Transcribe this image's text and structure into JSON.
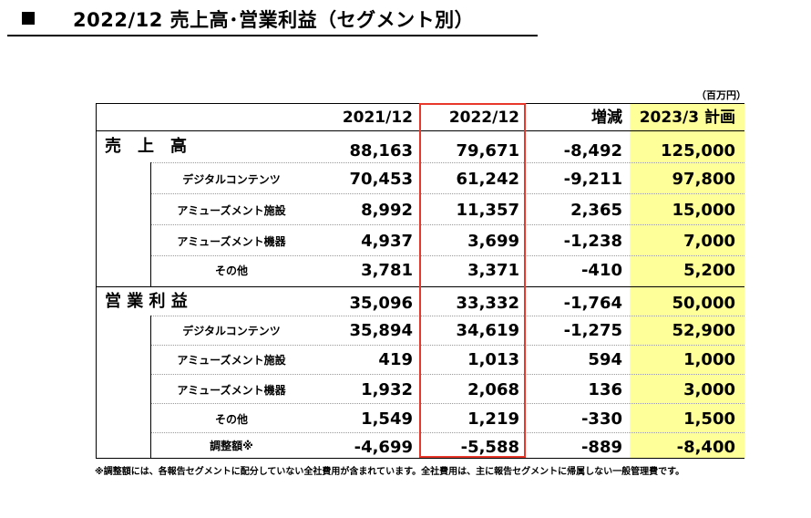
{
  "title": {
    "marker": "■",
    "text": "2022/12 売上高･営業利益（セグメント別）"
  },
  "unit": "（百万円）",
  "columns": [
    "2021/12",
    "2022/12",
    "増減",
    "2023/3 計画"
  ],
  "sections": [
    {
      "label": "売　上　高",
      "values": [
        "88,163",
        "79,671",
        "-8,492",
        "125,000"
      ],
      "rows": [
        {
          "label": "デジタルコンテンツ",
          "values": [
            "70,453",
            "61,242",
            "-9,211",
            "97,800"
          ]
        },
        {
          "label": "アミューズメント施設",
          "values": [
            "8,992",
            "11,357",
            "2,365",
            "15,000"
          ]
        },
        {
          "label": "アミューズメント機器",
          "values": [
            "4,937",
            "3,699",
            "-1,238",
            "7,000"
          ]
        },
        {
          "label": "その他",
          "values": [
            "3,781",
            "3,371",
            "-410",
            "5,200"
          ]
        }
      ]
    },
    {
      "label": "営 業 利 益",
      "values": [
        "35,096",
        "33,332",
        "-1,764",
        "50,000"
      ],
      "rows": [
        {
          "label": "デジタルコンテンツ",
          "values": [
            "35,894",
            "34,619",
            "-1,275",
            "52,900"
          ]
        },
        {
          "label": "アミューズメント施設",
          "values": [
            "419",
            "1,013",
            "594",
            "1,000"
          ]
        },
        {
          "label": "アミューズメント機器",
          "values": [
            "1,932",
            "2,068",
            "136",
            "3,000"
          ]
        },
        {
          "label": "その他",
          "values": [
            "1,549",
            "1,219",
            "-330",
            "1,500"
          ]
        },
        {
          "label": "調整額※",
          "values": [
            "-4,699",
            "-5,588",
            "-889",
            "-8,400"
          ]
        }
      ]
    }
  ],
  "footnote": "※調整額には、各報告セグメントに配分していない全社費用が含まれています。全社費用は、主に報告セグメントに帰属しない一般管理費です。",
  "colors": {
    "plan_highlight": "#ffff99",
    "current_column_border": "#e8382c"
  }
}
